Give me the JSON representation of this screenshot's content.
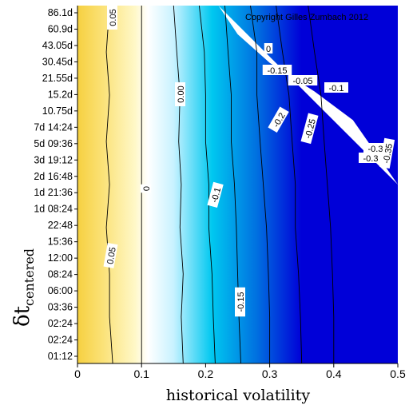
{
  "chart_data": {
    "type": "heatmap",
    "title": "",
    "copyright": "Copyright Gilles Zumbach 2012",
    "xlabel": "historical volatility",
    "ylabel": "δt",
    "ylabel_subscript": "centered",
    "xlim": [
      0,
      0.5
    ],
    "x_ticks": [
      "0",
      "0.1",
      "0.2",
      "0.3",
      "0.4",
      "0.5"
    ],
    "y_ticks": [
      "01:12",
      "02:24",
      "02:24",
      "03:36",
      "06:00",
      "08:24",
      "12:00",
      "15:36",
      "22:48",
      "1d 08:24",
      "1d 21:36",
      "2d 16:48",
      "3d 19:12",
      "5d 09:36",
      "7d 14:24",
      "10.75d",
      "15.2d",
      "21.55d",
      "30.45d",
      "43.05d",
      "60.9d",
      "86.1d"
    ],
    "colormap": [
      "#f6d040",
      "#fff8c8",
      "#ffffff",
      "#c8f2ff",
      "#00c8f0",
      "#0070e0",
      "#0000d8"
    ],
    "contour_labels": [
      "0.05",
      "0.05",
      "0",
      "0.00",
      "0",
      "-0.15",
      "-0.05",
      "-0.1",
      "-0.1",
      "-0.15",
      "-0.2",
      "-0.25",
      "-0.3",
      "-0.3",
      "-0.35"
    ],
    "contours": [
      {
        "level": 0.05,
        "x": [
          0.055,
          0.05,
          0.05,
          0.045,
          0.05,
          0.045,
          0.05,
          0.045,
          0.05
        ]
      },
      {
        "level": 0.0,
        "x": [
          0.1,
          0.1,
          0.1,
          0.1,
          0.1,
          0.1,
          0.1,
          0.1,
          0.1
        ]
      },
      {
        "level": -0.05,
        "x": [
          0.165,
          0.162,
          0.165,
          0.16,
          0.162,
          0.158,
          0.16,
          0.155,
          0.15
        ]
      },
      {
        "level": -0.1,
        "x": [
          0.215,
          0.212,
          0.21,
          0.205,
          0.205,
          0.2,
          0.2,
          0.198,
          0.19
        ]
      },
      {
        "level": -0.15,
        "x": [
          0.255,
          0.252,
          0.25,
          0.248,
          0.245,
          0.24,
          0.24,
          0.235,
          0.23
        ]
      },
      {
        "level": -0.2,
        "x": [
          0.3,
          0.3,
          0.298,
          0.295,
          0.29,
          0.285,
          0.28,
          0.28,
          0.27
        ]
      },
      {
        "level": -0.25,
        "x": [
          0.35,
          0.348,
          0.345,
          0.34,
          0.34,
          0.335,
          0.33,
          0.32,
          0.31
        ]
      },
      {
        "level": -0.3,
        "x": [
          0.4,
          0.4,
          0.398,
          0.395,
          0.39,
          0.385,
          0.38,
          0.37,
          0.36
        ]
      }
    ],
    "contour_y_fraction": [
      0.0,
      0.13,
      0.25,
      0.38,
      0.5,
      0.62,
      0.75,
      0.87,
      1.0
    ],
    "empty_region_boundary": [
      [
        0.5,
        0.5
      ],
      [
        0.43,
        0.68
      ],
      [
        0.37,
        0.76
      ],
      [
        0.3,
        0.84
      ],
      [
        0.25,
        0.92
      ],
      [
        0.22,
        1.0
      ]
    ]
  }
}
